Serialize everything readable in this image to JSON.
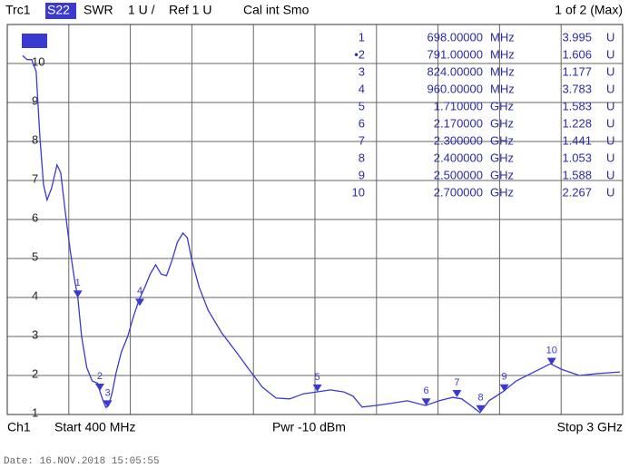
{
  "chart_data": {
    "type": "line",
    "header": {
      "trace": "Trc1",
      "param": "S22",
      "format": "SWR",
      "scale": "1 U /",
      "ref": "Ref 1 U",
      "cal": "Cal int Smo",
      "page": "1 of 2 (Max)"
    },
    "footer": {
      "channel": "Ch1",
      "start": "Start 400 MHz",
      "power": "Pwr -10 dBm",
      "stop": "Stop 3 GHz"
    },
    "date": "Date: 16.NOV.2018  15:05:55",
    "xlim": [
      400,
      3000
    ],
    "xticks": [
      400,
      660,
      920,
      1180,
      1440,
      1700,
      1960,
      2220,
      2480,
      2740,
      3000
    ],
    "ylim": [
      1,
      11
    ],
    "yticks": [
      1,
      2,
      3,
      4,
      5,
      6,
      7,
      8,
      9,
      10
    ],
    "grid": true,
    "series": [
      {
        "color": "#3a3ad0",
        "x": [
          465,
          484,
          503,
          522,
          538,
          553,
          568,
          587,
          610,
          626,
          645,
          664,
          683,
          698,
          714,
          736,
          759,
          782,
          791,
          805,
          817,
          828,
          844,
          859,
          882,
          909,
          935,
          958,
          981,
          1004,
          1027,
          1050,
          1073,
          1096,
          1119,
          1142,
          1161,
          1180,
          1211,
          1249,
          1306,
          1364,
          1421,
          1478,
          1536,
          1593,
          1651,
          1708,
          1765,
          1822,
          1861,
          1899,
          1956,
          2014,
          2090,
          2167,
          2224,
          2282,
          2320,
          2359,
          2397,
          2435,
          2493,
          2550,
          2626,
          2695,
          2741,
          2818,
          2894,
          2989
        ],
        "values": [
          10.2,
          10.1,
          10.1,
          9.8,
          8.1,
          6.9,
          6.5,
          6.8,
          7.4,
          7.2,
          6.2,
          5.3,
          4.5,
          4.0,
          3.0,
          2.2,
          1.86,
          1.8,
          1.6,
          1.35,
          1.18,
          1.23,
          1.58,
          2.05,
          2.6,
          3.0,
          3.55,
          3.95,
          4.26,
          4.6,
          4.84,
          4.6,
          4.56,
          4.95,
          5.42,
          5.65,
          5.53,
          4.95,
          4.26,
          3.67,
          3.09,
          2.63,
          2.16,
          1.7,
          1.42,
          1.4,
          1.53,
          1.58,
          1.63,
          1.58,
          1.47,
          1.19,
          1.23,
          1.28,
          1.35,
          1.23,
          1.35,
          1.44,
          1.4,
          1.23,
          1.05,
          1.35,
          1.58,
          1.86,
          2.09,
          2.3,
          2.16,
          2.0,
          2.05,
          2.09
        ]
      }
    ],
    "markers": {
      "labels": [
        "1",
        "2",
        "3",
        "4",
        "5",
        "6",
        "7",
        "8",
        "9",
        "10"
      ],
      "table_labels": [
        "1",
        "•2",
        "3",
        "4",
        "5",
        "6",
        "7",
        "8",
        "9",
        "10"
      ],
      "x": [
        698,
        791,
        824,
        960,
        1710,
        2170,
        2300,
        2400,
        2500,
        2700
      ],
      "x_labels": [
        "698.00000",
        "791.00000",
        "824.00000",
        "960.00000",
        "1.710000",
        "2.170000",
        "2.300000",
        "2.400000",
        "2.500000",
        "2.700000"
      ],
      "x_units": [
        "MHz",
        "MHz",
        "MHz",
        "MHz",
        "GHz",
        "GHz",
        "GHz",
        "GHz",
        "GHz",
        "GHz"
      ],
      "values": [
        3.995,
        1.606,
        1.177,
        3.783,
        1.583,
        1.228,
        1.441,
        1.053,
        1.588,
        2.267
      ],
      "value_labels": [
        "3.995",
        "1.606",
        "1.177",
        "3.783",
        "1.583",
        "1.228",
        "1.441",
        "1.053",
        "1.588",
        "2.267"
      ],
      "value_unit": "U"
    }
  }
}
